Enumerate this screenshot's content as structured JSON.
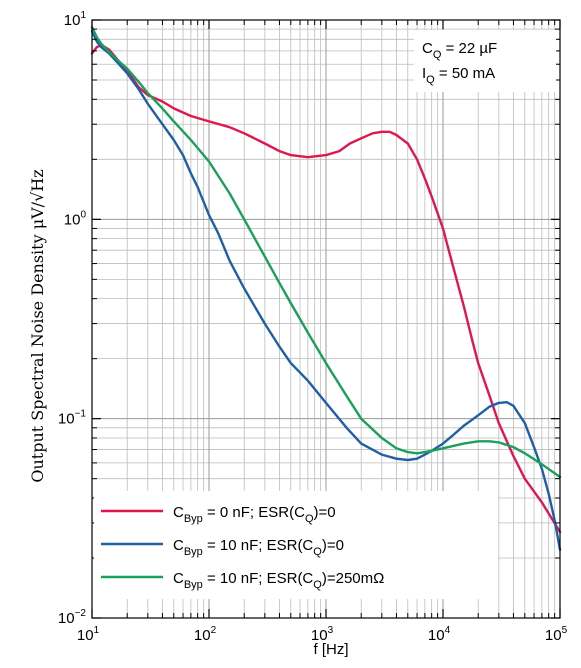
{
  "chart_data": {
    "type": "line",
    "title": "",
    "xlabel": "f [Hz]",
    "ylabel": "Output Spectral Noise Density μV/√Hz",
    "xscale": "log",
    "yscale": "log",
    "xlim": [
      10,
      100000
    ],
    "ylim": [
      0.01,
      10
    ],
    "grid": true,
    "x_ticks": [
      {
        "value": 10,
        "base": "10",
        "exp": "1"
      },
      {
        "value": 100,
        "base": "10",
        "exp": "2"
      },
      {
        "value": 1000,
        "base": "10",
        "exp": "3"
      },
      {
        "value": 10000,
        "base": "10",
        "exp": "4"
      },
      {
        "value": 100000,
        "base": "10",
        "exp": "5"
      }
    ],
    "y_ticks": [
      {
        "value": 0.01,
        "base": "10",
        "exp": "−2"
      },
      {
        "value": 0.1,
        "base": "10",
        "exp": "−1"
      },
      {
        "value": 1,
        "base": "10",
        "exp": "0"
      },
      {
        "value": 10,
        "base": "10",
        "exp": "1"
      }
    ],
    "annotation": {
      "line1_main": "C",
      "line1_sub": "Q",
      "line1_rest": " = 22 µF",
      "line2_main": "I",
      "line2_sub": "Q",
      "line2_rest": " = 50 mA"
    },
    "legend_position": "bottom-left",
    "series": [
      {
        "name_parts": [
          "C",
          "Byp",
          " = 0 nF; ESR(C",
          "Q",
          ")=0"
        ],
        "color": "#e0174d",
        "points": [
          [
            10,
            6.8
          ],
          [
            11,
            7.3
          ],
          [
            12,
            7.5
          ],
          [
            14,
            7.1
          ],
          [
            17,
            6.2
          ],
          [
            20,
            5.6
          ],
          [
            25,
            4.6
          ],
          [
            30,
            4.2
          ],
          [
            40,
            3.9
          ],
          [
            50,
            3.6
          ],
          [
            70,
            3.3
          ],
          [
            100,
            3.1
          ],
          [
            150,
            2.9
          ],
          [
            200,
            2.7
          ],
          [
            300,
            2.4
          ],
          [
            400,
            2.2
          ],
          [
            500,
            2.1
          ],
          [
            700,
            2.05
          ],
          [
            1000,
            2.1
          ],
          [
            1300,
            2.2
          ],
          [
            1600,
            2.4
          ],
          [
            2000,
            2.55
          ],
          [
            2500,
            2.7
          ],
          [
            3000,
            2.75
          ],
          [
            3500,
            2.75
          ],
          [
            4000,
            2.65
          ],
          [
            5000,
            2.4
          ],
          [
            6000,
            2.0
          ],
          [
            7000,
            1.6
          ],
          [
            8000,
            1.3
          ],
          [
            10000,
            0.9
          ],
          [
            12000,
            0.6
          ],
          [
            15000,
            0.37
          ],
          [
            18000,
            0.24
          ],
          [
            20000,
            0.19
          ],
          [
            25000,
            0.13
          ],
          [
            30000,
            0.095
          ],
          [
            40000,
            0.065
          ],
          [
            50000,
            0.05
          ],
          [
            70000,
            0.038
          ],
          [
            100000,
            0.027
          ]
        ]
      },
      {
        "name_parts": [
          "C",
          "Byp",
          " = 10 nF; ESR(C",
          "Q",
          ")=0"
        ],
        "color": "#1f5fa6",
        "points": [
          [
            10,
            8.8
          ],
          [
            11,
            7.8
          ],
          [
            12,
            7.3
          ],
          [
            14,
            6.8
          ],
          [
            17,
            6.0
          ],
          [
            20,
            5.4
          ],
          [
            25,
            4.5
          ],
          [
            30,
            3.8
          ],
          [
            40,
            3.0
          ],
          [
            50,
            2.5
          ],
          [
            60,
            2.1
          ],
          [
            70,
            1.7
          ],
          [
            80,
            1.45
          ],
          [
            100,
            1.05
          ],
          [
            120,
            0.85
          ],
          [
            150,
            0.62
          ],
          [
            200,
            0.45
          ],
          [
            300,
            0.3
          ],
          [
            400,
            0.23
          ],
          [
            500,
            0.19
          ],
          [
            700,
            0.155
          ],
          [
            1000,
            0.12
          ],
          [
            1500,
            0.09
          ],
          [
            2000,
            0.075
          ],
          [
            3000,
            0.066
          ],
          [
            4000,
            0.063
          ],
          [
            5000,
            0.062
          ],
          [
            6000,
            0.063
          ],
          [
            7000,
            0.066
          ],
          [
            8000,
            0.069
          ],
          [
            10000,
            0.075
          ],
          [
            12000,
            0.082
          ],
          [
            15000,
            0.092
          ],
          [
            20000,
            0.104
          ],
          [
            25000,
            0.115
          ],
          [
            30000,
            0.12
          ],
          [
            35000,
            0.121
          ],
          [
            40000,
            0.116
          ],
          [
            50000,
            0.095
          ],
          [
            60000,
            0.072
          ],
          [
            70000,
            0.056
          ],
          [
            80000,
            0.042
          ],
          [
            90000,
            0.031
          ],
          [
            100000,
            0.022
          ]
        ]
      },
      {
        "name_parts": [
          "C",
          "Byp",
          " = 10 nF; ESR(C",
          "Q",
          ")=250mΩ"
        ],
        "color": "#19a05a",
        "points": [
          [
            10,
            9.2
          ],
          [
            11,
            8.2
          ],
          [
            12,
            7.6
          ],
          [
            14,
            6.9
          ],
          [
            17,
            6.2
          ],
          [
            20,
            5.7
          ],
          [
            25,
            4.9
          ],
          [
            30,
            4.3
          ],
          [
            40,
            3.6
          ],
          [
            50,
            3.1
          ],
          [
            70,
            2.5
          ],
          [
            100,
            1.95
          ],
          [
            150,
            1.35
          ],
          [
            200,
            1.0
          ],
          [
            300,
            0.65
          ],
          [
            400,
            0.48
          ],
          [
            500,
            0.38
          ],
          [
            700,
            0.27
          ],
          [
            1000,
            0.19
          ],
          [
            1500,
            0.13
          ],
          [
            2000,
            0.1
          ],
          [
            3000,
            0.08
          ],
          [
            4000,
            0.071
          ],
          [
            5000,
            0.068
          ],
          [
            6000,
            0.067
          ],
          [
            7000,
            0.068
          ],
          [
            8000,
            0.069
          ],
          [
            10000,
            0.071
          ],
          [
            15000,
            0.075
          ],
          [
            20000,
            0.077
          ],
          [
            25000,
            0.077
          ],
          [
            30000,
            0.076
          ],
          [
            40000,
            0.072
          ],
          [
            50000,
            0.067
          ],
          [
            70000,
            0.059
          ],
          [
            100000,
            0.051
          ]
        ]
      }
    ]
  }
}
